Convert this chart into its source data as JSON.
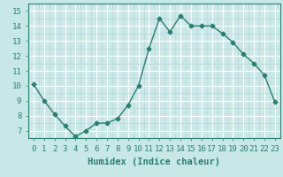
{
  "x": [
    0,
    1,
    2,
    3,
    4,
    5,
    6,
    7,
    8,
    9,
    10,
    11,
    12,
    13,
    14,
    15,
    16,
    17,
    18,
    19,
    20,
    21,
    22,
    23
  ],
  "y": [
    10.1,
    9.0,
    8.1,
    7.3,
    6.6,
    7.0,
    7.5,
    7.5,
    7.8,
    8.7,
    10.0,
    12.5,
    14.5,
    13.6,
    14.7,
    14.0,
    14.0,
    14.0,
    13.5,
    12.9,
    12.1,
    11.5,
    10.7,
    8.9
  ],
  "line_color": "#2a7f72",
  "marker": "D",
  "markersize": 2.5,
  "linewidth": 1.0,
  "bg_color": "#c8e8e8",
  "plot_bg_color": "#cce8e8",
  "grid_color_major": "#ffffff",
  "grid_color_minor": "#b8d8d8",
  "xlabel": "Humidex (Indice chaleur)",
  "xlim": [
    -0.5,
    23.5
  ],
  "ylim": [
    6.5,
    15.5
  ],
  "yticks": [
    7,
    8,
    9,
    10,
    11,
    12,
    13,
    14,
    15
  ],
  "xticks": [
    0,
    1,
    2,
    3,
    4,
    5,
    6,
    7,
    8,
    9,
    10,
    11,
    12,
    13,
    14,
    15,
    16,
    17,
    18,
    19,
    20,
    21,
    22,
    23
  ],
  "xlabel_fontsize": 7.5,
  "tick_fontsize": 6.5,
  "tick_color": "#2a7f72"
}
